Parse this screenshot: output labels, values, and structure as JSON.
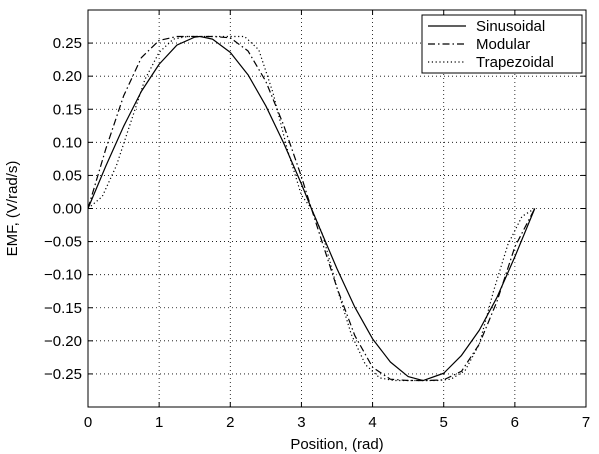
{
  "chart_data": {
    "type": "line",
    "title": "",
    "xlabel": "Position, (rad)",
    "ylabel": "EMF, (V/rad/s)",
    "xlim": [
      0,
      7
    ],
    "ylim": [
      -0.3,
      0.3
    ],
    "grid": true,
    "legend_position": "top-right",
    "x_ticks": [
      {
        "value": 0,
        "label": "0"
      },
      {
        "value": 1,
        "label": "1"
      },
      {
        "value": 2,
        "label": "2"
      },
      {
        "value": 3,
        "label": "3"
      },
      {
        "value": 4,
        "label": "4"
      },
      {
        "value": 5,
        "label": "5"
      },
      {
        "value": 6,
        "label": "6"
      },
      {
        "value": 7,
        "label": "7"
      }
    ],
    "y_ticks": [
      {
        "value": 0.25,
        "label": "0.25"
      },
      {
        "value": 0.2,
        "label": "0.20"
      },
      {
        "value": 0.15,
        "label": "0.15"
      },
      {
        "value": 0.1,
        "label": "0.10"
      },
      {
        "value": 0.05,
        "label": "0.05"
      },
      {
        "value": 0.0,
        "label": "0.00"
      },
      {
        "value": -0.05,
        "label": "−0.05"
      },
      {
        "value": -0.1,
        "label": "−0.10"
      },
      {
        "value": -0.15,
        "label": "−0.15"
      },
      {
        "value": -0.2,
        "label": "−0.20"
      },
      {
        "value": -0.25,
        "label": "−0.25"
      }
    ],
    "series": [
      {
        "name": "Sinusoidal",
        "style": "solid",
        "color": "#000000",
        "x": [
          0,
          0.25,
          0.5,
          0.75,
          1.0,
          1.25,
          1.5,
          1.57,
          1.75,
          2.0,
          2.25,
          2.5,
          2.75,
          3.0,
          3.14,
          3.25,
          3.5,
          3.75,
          4.0,
          4.25,
          4.5,
          4.71,
          5.0,
          5.25,
          5.5,
          5.75,
          6.0,
          6.28
        ],
        "y": [
          0.0,
          0.064,
          0.124,
          0.177,
          0.218,
          0.247,
          0.259,
          0.26,
          0.256,
          0.236,
          0.202,
          0.155,
          0.099,
          0.037,
          0.0,
          -0.028,
          -0.091,
          -0.149,
          -0.197,
          -0.232,
          -0.254,
          -0.26,
          -0.249,
          -0.222,
          -0.184,
          -0.134,
          -0.073,
          0.0
        ]
      },
      {
        "name": "Modular",
        "style": "dashdot",
        "color": "#000000",
        "x": [
          0,
          0.25,
          0.5,
          0.75,
          1.0,
          1.25,
          1.5,
          1.75,
          2.0,
          2.25,
          2.5,
          2.75,
          3.0,
          3.14,
          3.25,
          3.5,
          3.75,
          4.0,
          4.25,
          4.5,
          4.75,
          5.0,
          5.25,
          5.5,
          5.75,
          6.0,
          6.28
        ],
        "y": [
          0.0,
          0.09,
          0.17,
          0.228,
          0.254,
          0.26,
          0.26,
          0.26,
          0.258,
          0.238,
          0.192,
          0.126,
          0.048,
          0.0,
          -0.037,
          -0.12,
          -0.192,
          -0.24,
          -0.258,
          -0.26,
          -0.26,
          -0.259,
          -0.246,
          -0.205,
          -0.14,
          -0.058,
          0.0
        ]
      },
      {
        "name": "Trapezoidal",
        "style": "dotted",
        "color": "#000000",
        "x": [
          0,
          0.2,
          0.4,
          0.6,
          0.8,
          1.0,
          1.2,
          1.4,
          1.6,
          1.8,
          2.0,
          2.2,
          2.4,
          2.6,
          2.8,
          3.0,
          3.14,
          3.3,
          3.5,
          3.7,
          3.9,
          4.1,
          4.3,
          4.5,
          4.7,
          4.9,
          5.1,
          5.3,
          5.5,
          5.7,
          5.9,
          6.1,
          6.28
        ],
        "y": [
          0.0,
          0.018,
          0.065,
          0.13,
          0.195,
          0.236,
          0.256,
          0.26,
          0.26,
          0.26,
          0.26,
          0.26,
          0.24,
          0.175,
          0.09,
          0.02,
          0.0,
          -0.04,
          -0.12,
          -0.19,
          -0.236,
          -0.256,
          -0.26,
          -0.26,
          -0.26,
          -0.26,
          -0.258,
          -0.245,
          -0.205,
          -0.125,
          -0.055,
          -0.012,
          0.0
        ]
      }
    ]
  }
}
